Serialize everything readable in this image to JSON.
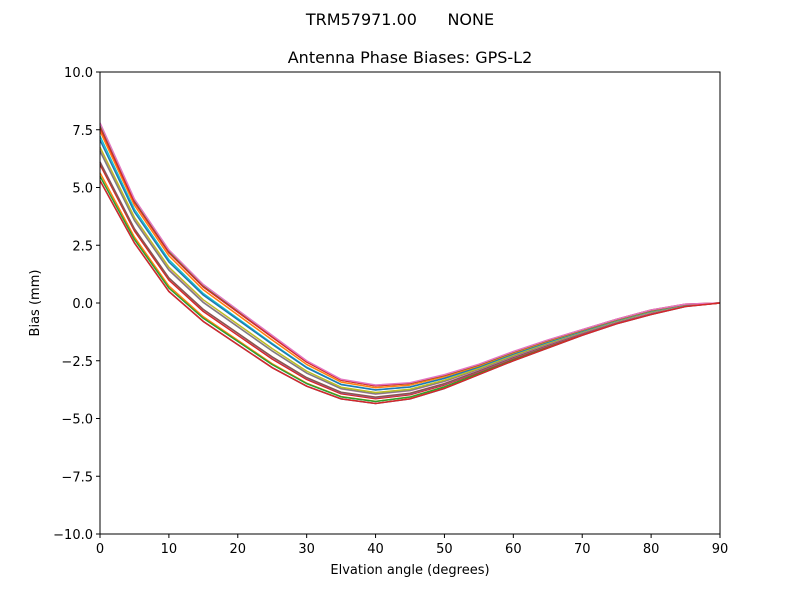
{
  "figure": {
    "suptitle": "TRM57971.00      NONE",
    "title": "Antenna Phase Biases: GPS-L2"
  },
  "chart_data": {
    "type": "line",
    "title": "Antenna Phase Biases: GPS-L2",
    "suptitle": "TRM57971.00      NONE",
    "xlabel": "Elvation angle (degrees)",
    "ylabel": "Bias (mm)",
    "xlim": [
      0,
      90
    ],
    "ylim": [
      -10.0,
      10.0
    ],
    "xticks": [
      "0",
      "10",
      "20",
      "30",
      "40",
      "50",
      "60",
      "70",
      "80",
      "90"
    ],
    "yticks": [
      "10.0",
      "7.5",
      "5.0",
      "2.5",
      "0.0",
      "−2.5",
      "−5.0",
      "−7.5",
      "−10.0"
    ],
    "grid": false,
    "legend": null,
    "x": [
      0,
      5,
      10,
      15,
      20,
      25,
      30,
      35,
      40,
      45,
      50,
      55,
      60,
      65,
      70,
      75,
      80,
      85,
      90
    ],
    "envelope_upper": [
      7.8,
      4.5,
      2.3,
      0.8,
      -0.3,
      -1.4,
      -2.5,
      -3.3,
      -3.55,
      -3.45,
      -3.1,
      -2.65,
      -2.1,
      -1.6,
      -1.15,
      -0.7,
      -0.3,
      -0.05,
      0.0
    ],
    "envelope_lower": [
      5.3,
      2.6,
      0.5,
      -0.8,
      -1.8,
      -2.8,
      -3.6,
      -4.15,
      -4.35,
      -4.15,
      -3.7,
      -3.1,
      -2.5,
      -1.95,
      -1.4,
      -0.9,
      -0.5,
      -0.15,
      0.0
    ],
    "series_count_estimate": 14,
    "series_colors": [
      "#1f77b4",
      "#ff7f0e",
      "#2ca02c",
      "#d62728",
      "#9467bd",
      "#8c564b",
      "#e377c2",
      "#7f7f7f",
      "#bcbd22",
      "#17becf"
    ],
    "note": "Many overlapping series (one per azimuth) forming a band; individual series approximated by interpolating between envelopes."
  }
}
